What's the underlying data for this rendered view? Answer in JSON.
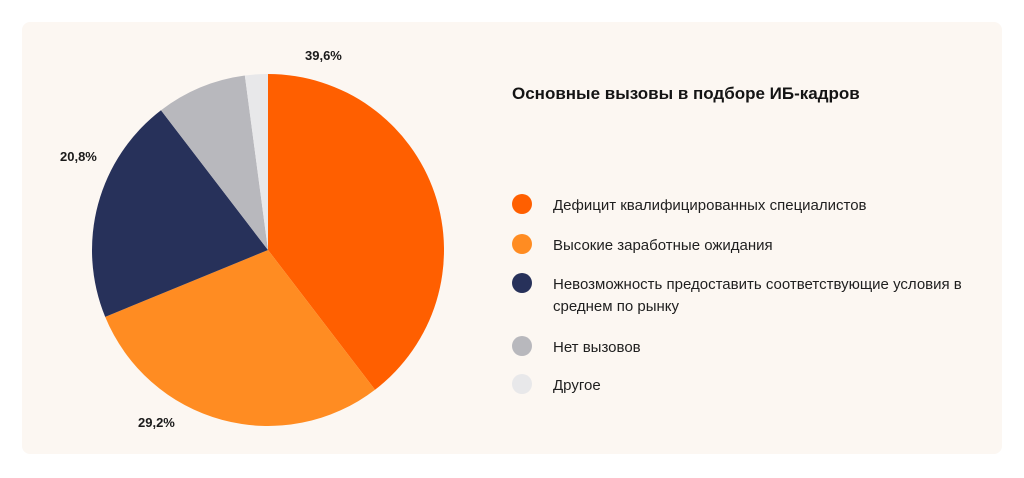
{
  "chart_data": {
    "type": "pie",
    "title": "Основные вызовы в подборе ИБ-кадров",
    "slices": [
      {
        "name": "Дефицит квалифицированных специалистов",
        "value": 39.6,
        "label": "39,6%",
        "color": "#ff5f00"
      },
      {
        "name": "Высокие заработные ожидания",
        "value": 29.2,
        "label": "29,2%",
        "color": "#ff8c22"
      },
      {
        "name": "Невозможность предоставить соответствующие условия в среднем по рынку",
        "value": 20.8,
        "label": "20,8%",
        "color": "#27315a"
      },
      {
        "name": "Нет вызовов",
        "value": 8.3,
        "label": "",
        "color": "#b8b8bd"
      },
      {
        "name": "Другое",
        "value": 2.1,
        "label": "",
        "color": "#e8e8ea"
      }
    ],
    "legend_position": "right"
  }
}
